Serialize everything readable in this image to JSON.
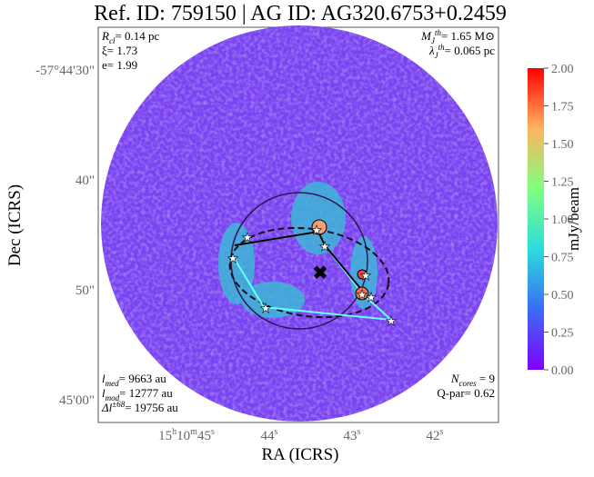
{
  "chart_data": {
    "type": "image",
    "title": "Ref. ID: 759150 | AG ID: AG320.6753+0.2459",
    "xlabel": "RA (ICRS)",
    "ylabel": "Dec (ICRS)",
    "xticks": [
      [
        "15",
        "h",
        "10",
        "m",
        "45",
        "s"
      ],
      [
        "44",
        "s"
      ],
      [
        "43",
        "s"
      ],
      [
        "42",
        "s"
      ]
    ],
    "yticks": [
      "-57°44'30\"",
      "40\"",
      "50\"",
      "45'00\""
    ],
    "colorbar": {
      "label": "mJy/beam",
      "clim": [
        0,
        2
      ],
      "ticks": [
        {
          "value": 0,
          "label": "0.00"
        },
        {
          "value": 0.25,
          "label": "0.25"
        },
        {
          "value": 0.5,
          "label": "0.50"
        },
        {
          "value": 0.75,
          "label": "0.75"
        },
        {
          "value": 1,
          "label": "1.00"
        },
        {
          "value": 1.25,
          "label": "1.25"
        },
        {
          "value": 1.5,
          "label": "1.50"
        },
        {
          "value": 1.75,
          "label": "1.75"
        },
        {
          "value": 2,
          "label": "2.00"
        }
      ]
    },
    "annotations": {
      "top_left": [
        [
          {
            "t": "R"
          },
          {
            "t": "cl",
            "s": "sub"
          },
          {
            "t": "= 0.14 pc"
          }
        ],
        [
          {
            "t": "ξ= 1.73"
          }
        ],
        [
          {
            "t": "e= 1.99"
          }
        ]
      ],
      "top_right": [
        [
          {
            "t": "M"
          },
          {
            "t": "J",
            "s": "sub"
          },
          {
            "t": "th",
            "s": "sup"
          },
          {
            "t": "= 1.65 M⊙"
          }
        ],
        [
          {
            "t": "λ"
          },
          {
            "t": "J",
            "s": "sub"
          },
          {
            "t": "th",
            "s": "sup"
          },
          {
            "t": "= 0.065 pc"
          }
        ]
      ],
      "bottom_left": [
        [
          {
            "t": "l"
          },
          {
            "t": "med",
            "s": "sub"
          },
          {
            "t": "= 9663 au"
          }
        ],
        [
          {
            "t": "l"
          },
          {
            "t": "mod",
            "s": "sub"
          },
          {
            "t": "= 12777 au"
          }
        ],
        [
          {
            "t": "Δl"
          },
          {
            "t": "±68",
            "s": "sup"
          },
          {
            "t": "= 19756 au"
          }
        ]
      ],
      "bottom_right": [
        [
          {
            "t": "N"
          },
          {
            "t": "cores",
            "s": "sub"
          },
          {
            "t": " = 9"
          }
        ],
        [
          {
            "t": "Q-par= 0.62"
          }
        ]
      ]
    }
  }
}
